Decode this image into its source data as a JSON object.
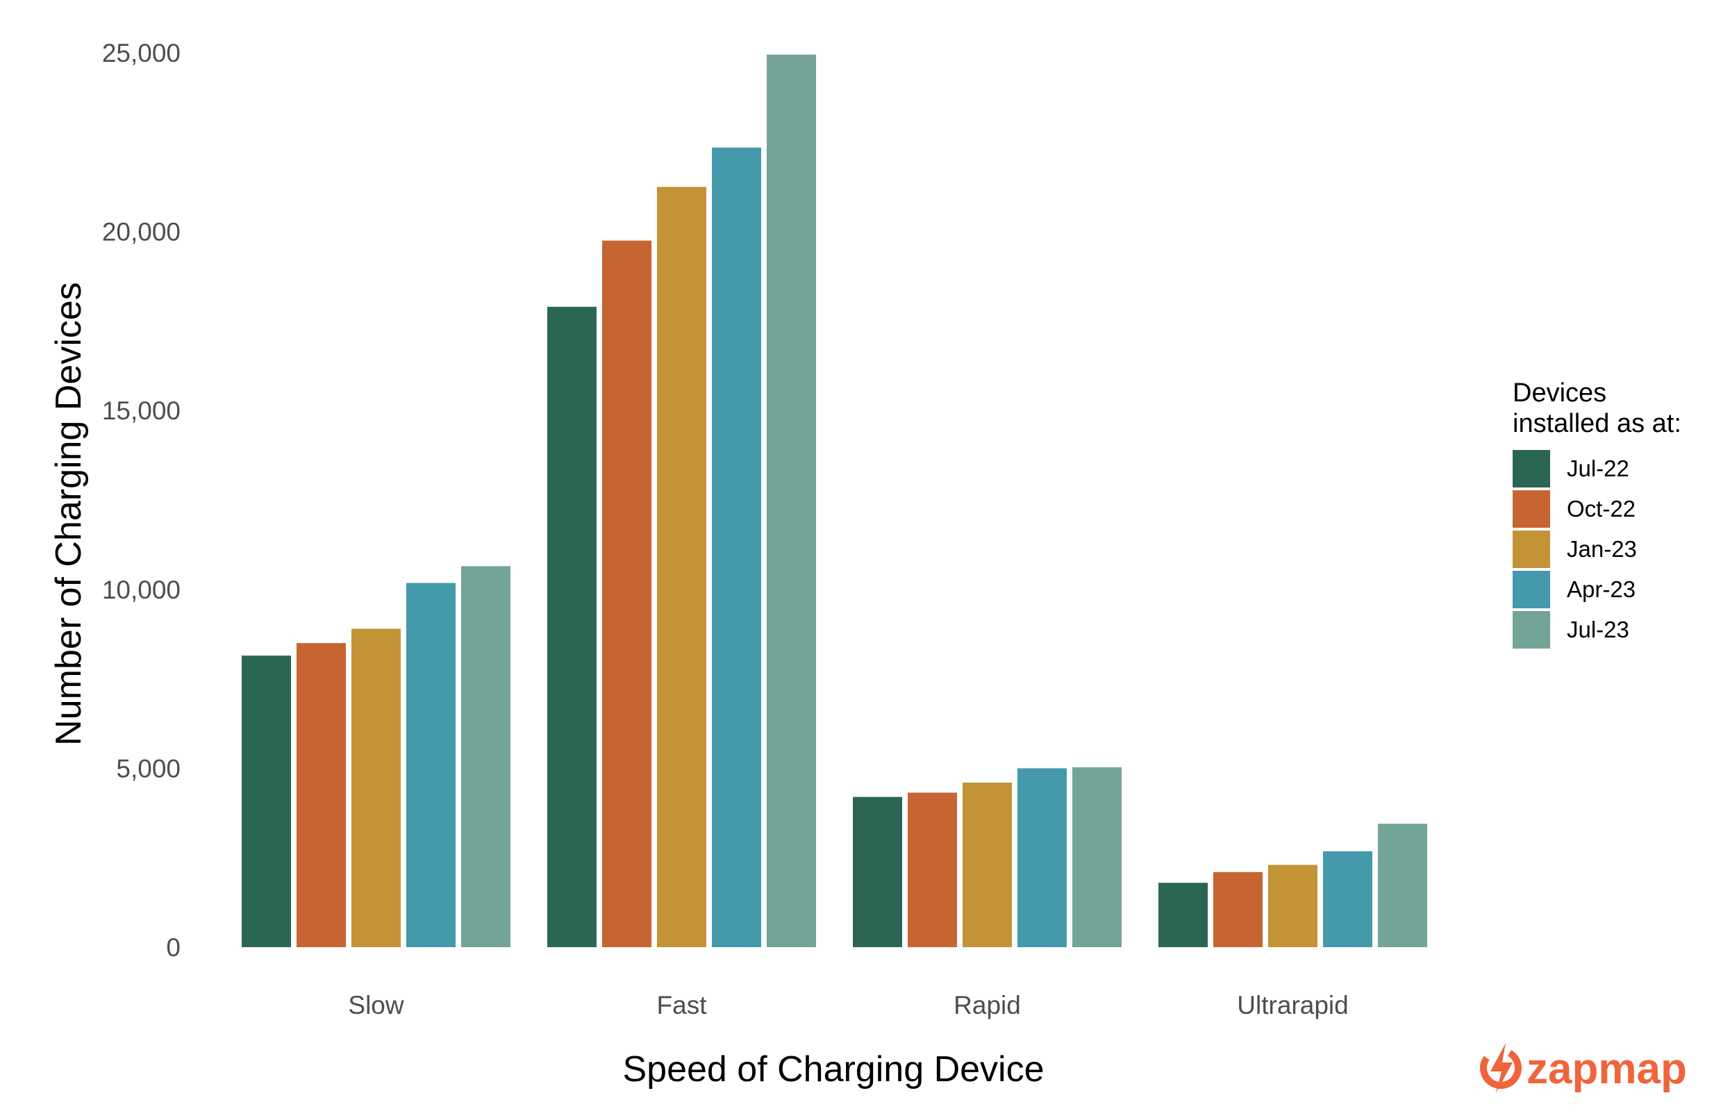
{
  "chart_data": {
    "type": "bar",
    "categories": [
      "Slow",
      "Fast",
      "Rapid",
      "Ultrarapid"
    ],
    "series": [
      {
        "name": "Jul-22",
        "color": "#2b6654",
        "values": [
          8150,
          17900,
          4200,
          1800
        ]
      },
      {
        "name": "Oct-22",
        "color": "#c76532",
        "values": [
          8500,
          19750,
          4320,
          2100
        ]
      },
      {
        "name": "Jan-23",
        "color": "#c39436",
        "values": [
          8900,
          21250,
          4600,
          2300
        ]
      },
      {
        "name": "Apr-23",
        "color": "#4499aa",
        "values": [
          10180,
          22350,
          5000,
          2680
        ]
      },
      {
        "name": "Jul-23",
        "color": "#74a398",
        "values": [
          10650,
          24950,
          5030,
          3450
        ]
      }
    ],
    "xlabel": "Speed of Charging Device",
    "ylabel": "Number of Charging Devices",
    "ylim": [
      0,
      25000
    ],
    "yticks": [
      0,
      5000,
      10000,
      15000,
      20000,
      25000
    ],
    "ytick_labels": [
      "0",
      "5,000",
      "10,000",
      "15,000",
      "20,000",
      "25,000"
    ],
    "grid": false,
    "legend": {
      "title_lines": [
        "Devices",
        "installed as at:"
      ],
      "position": "right"
    }
  },
  "branding": {
    "logo_text": "zapmap",
    "logo_icon": "lightning-bolt-icon",
    "color": "#f0643c"
  }
}
